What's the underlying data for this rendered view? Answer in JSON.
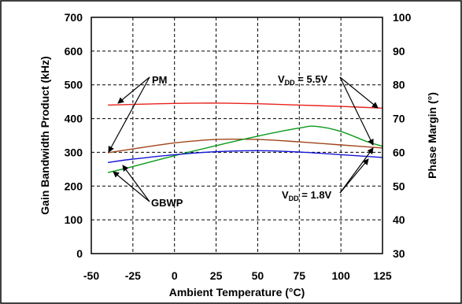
{
  "chart_data": {
    "type": "line",
    "title": "",
    "xlabel": "Ambient Temperature (°C)",
    "ylabel": "Gain Bandwidth Product (kHz)",
    "y2label": "Phase Margin (°)",
    "xlim": [
      -50,
      125
    ],
    "ylim": [
      0,
      700
    ],
    "y2lim": [
      30,
      100
    ],
    "x_ticks": [
      "-50",
      "-25",
      "0",
      "25",
      "50",
      "75",
      "100",
      "125"
    ],
    "y_ticks": [
      "0",
      "100",
      "200",
      "300",
      "400",
      "500",
      "600",
      "700"
    ],
    "y2_ticks": [
      "30",
      "40",
      "50",
      "60",
      "70",
      "80",
      "90",
      "100"
    ],
    "grid": true,
    "series": [
      {
        "axis": "right",
        "color": "#e8231b",
        "x": [
          -40,
          -25,
          0,
          25,
          50,
          75,
          100,
          125
        ],
        "y": [
          74.0,
          74.2,
          74.5,
          74.6,
          74.4,
          74.0,
          73.6,
          73.1
        ]
      },
      {
        "axis": "right",
        "color": "#a0441a",
        "x": [
          -40,
          -25,
          0,
          25,
          50,
          75,
          100,
          125
        ],
        "y": [
          59.9,
          61.0,
          62.8,
          63.8,
          63.8,
          63.1,
          62.2,
          61.3
        ]
      },
      {
        "axis": "left",
        "color": "#0a9a1a",
        "x": [
          -40,
          -25,
          0,
          25,
          50,
          75,
          85,
          100,
          115,
          125
        ],
        "y": [
          240,
          258,
          290,
          320,
          348,
          372,
          377,
          362,
          333,
          318
        ]
      },
      {
        "axis": "left",
        "color": "#1515d6",
        "x": [
          -40,
          -25,
          0,
          25,
          50,
          75,
          100,
          125
        ],
        "y": [
          270,
          280,
          293,
          302,
          305,
          301,
          293,
          285
        ]
      }
    ],
    "annotations": {
      "pm": "PM",
      "gbwp": "GBWP",
      "vdd_high": {
        "main": "V",
        "sub": "DD",
        "rest": " = 5.5V"
      },
      "vdd_low": {
        "main": "V",
        "sub": "DD",
        "rest": " = 1.8V"
      }
    }
  }
}
